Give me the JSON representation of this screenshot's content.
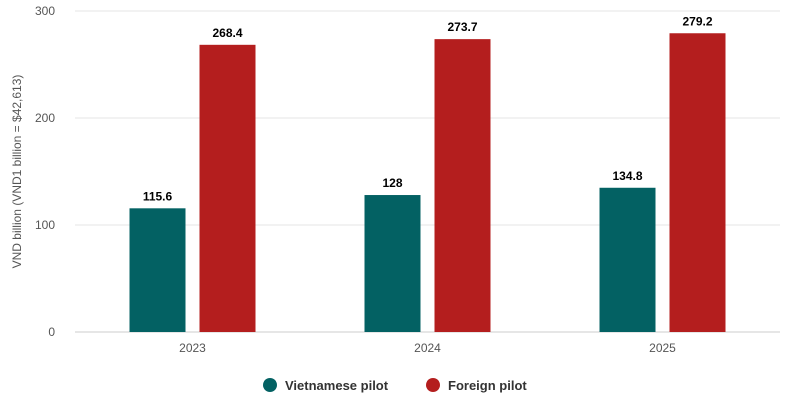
{
  "chart_data": {
    "type": "bar",
    "categories": [
      "2023",
      "2024",
      "2025"
    ],
    "series": [
      {
        "name": "Vietnamese pilot",
        "values": [
          115.6,
          128,
          134.8
        ],
        "color": "#036163"
      },
      {
        "name": "Foreign pilot",
        "values": [
          268.4,
          273.7,
          279.2
        ],
        "color": "#b41e1e"
      }
    ],
    "ylabel": "VND billion (VND1 billion = $42,613)",
    "xlabel": "",
    "ylim": [
      0,
      300
    ],
    "yticks": [
      0,
      100,
      200,
      300
    ],
    "data_labels": [
      "115.6",
      "268.4",
      "128",
      "273.7",
      "134.8",
      "279.2"
    ],
    "grid": true,
    "legend": "bottom-center"
  }
}
